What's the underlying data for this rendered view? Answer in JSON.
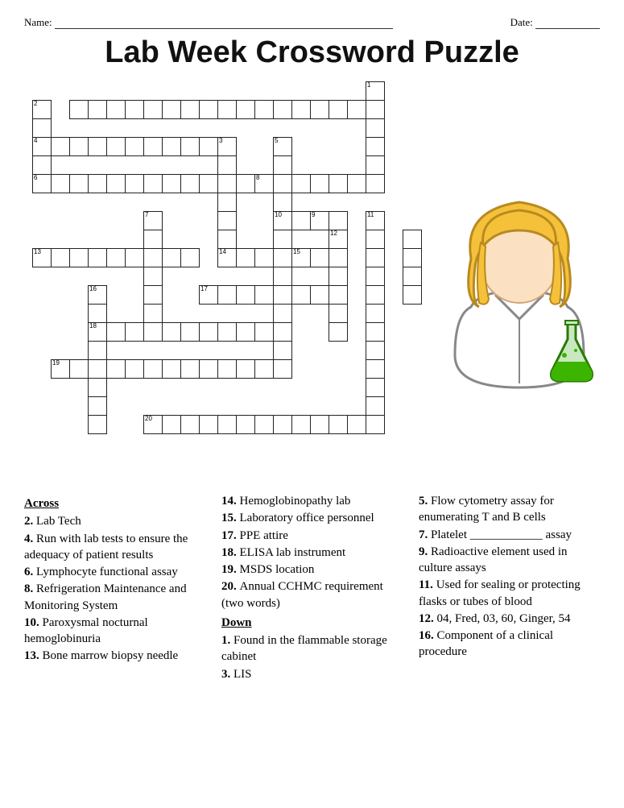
{
  "header": {
    "name_label": "Name:",
    "date_label": "Date:"
  },
  "title": "Lab Week Crossword Puzzle",
  "grid": {
    "cell_size": 22,
    "rows": 21,
    "cols": 22,
    "border_color": "#222222",
    "background_color": "#ffffff",
    "layout": [
      "..................X...",
      "X.XXXXXXXXXXXXXXXXX...",
      "X.................X...",
      "XXXXXXXXXXX..X....X...",
      "X.........X..X....X...",
      "XXXXXXXXXXXXXXXXXXX...",
      "..........X..X........",
      "......X...X..XXXX.X...",
      "......X...X..X..X.X.X.",
      "XXXXXXXXX.XXXXXXX.X.X.",
      "......X......X..X.X.X.",
      "...X..X..XXXXXXXX.X.X.",
      "...X..X......X..X.X...",
      "...XXXXXXXXXXX..X.X...",
      "...X.........X....X...",
      ".XXXXXXXXXXXXX....X...",
      "...X..............X...",
      "...X..............X...",
      "...X..XXXXXXXXXXXXX...",
      "......................",
      "......................"
    ],
    "numbers": {
      "0-18": "1",
      "1-0": "2",
      "3-0": "4",
      "3-10": "3",
      "3-13": "5",
      "5-0": "6",
      "7-6": "7",
      "5-12": "8",
      "7-18": "11",
      "8-16": "12",
      "9-0": "13",
      "9-10": "14",
      "7-13": "10",
      "7-15": "9",
      "11-9": "17",
      "11-3": "16",
      "13-3": "18",
      "15-1": "19",
      "18-6": "20",
      "9-14": "15"
    }
  },
  "clipart": {
    "hair_color": "#f6c13a",
    "hair_outline": "#b88a1f",
    "face_color": "#fbe1c1",
    "coat_color": "#ffffff",
    "coat_outline": "#888888",
    "flask_glass": "#c9e8c0",
    "flask_liquid": "#3bb500",
    "flask_outline": "#2a7a00"
  },
  "clues": {
    "across_heading": "Across",
    "down_heading": "Down",
    "across": [
      {
        "n": "2.",
        "t": "Lab Tech"
      },
      {
        "n": "4.",
        "t": "Run with lab tests to ensure the adequacy of patient results"
      },
      {
        "n": "6.",
        "t": "Lymphocyte functional assay"
      },
      {
        "n": "8.",
        "t": "Refrigeration Maintenance and Monitoring System"
      },
      {
        "n": "10.",
        "t": "Paroxysmal nocturnal hemoglobinuria"
      },
      {
        "n": "13.",
        "t": "Bone marrow biopsy needle"
      },
      {
        "n": "14.",
        "t": "Hemoglobinopathy lab"
      },
      {
        "n": "15.",
        "t": "Laboratory office personnel"
      },
      {
        "n": "17.",
        "t": "PPE attire"
      },
      {
        "n": "18.",
        "t": "ELISA lab instrument"
      },
      {
        "n": "19.",
        "t": "MSDS location"
      },
      {
        "n": "20.",
        "t": "Annual CCHMC requirement (two words)"
      }
    ],
    "down": [
      {
        "n": "1.",
        "t": "Found in the flammable storage cabinet"
      },
      {
        "n": "3.",
        "t": "LIS"
      },
      {
        "n": "5.",
        "t": "Flow cytometry assay for enumerating T and B cells"
      },
      {
        "n": "7.",
        "t": "Platelet ____________ assay"
      },
      {
        "n": "9.",
        "t": "Radioactive element used in culture assays"
      },
      {
        "n": "11.",
        "t": "Used for sealing or protecting flasks or tubes of blood"
      },
      {
        "n": "12.",
        "t": "04, Fred, 03, 60, Ginger, 54"
      },
      {
        "n": "16.",
        "t": "Component of a clinical procedure"
      }
    ]
  }
}
